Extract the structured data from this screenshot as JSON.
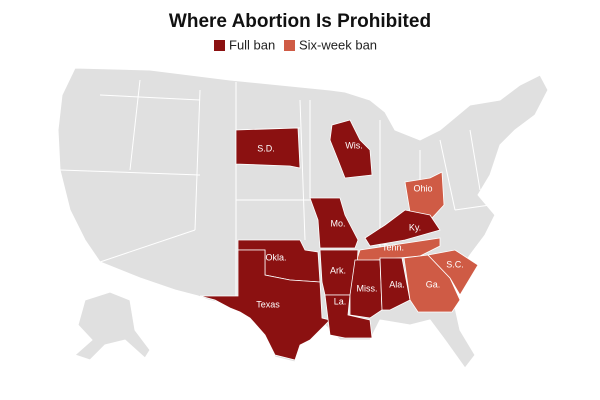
{
  "title": "Where Abortion Is Prohibited",
  "legend": [
    {
      "label": "Full ban",
      "color": "#8b1111"
    },
    {
      "label": "Six-week ban",
      "color": "#cf5b45"
    }
  ],
  "states": [
    {
      "label": "S.D.",
      "category": 0
    },
    {
      "label": "Wis.",
      "category": 0
    },
    {
      "label": "Ohio",
      "category": 1
    },
    {
      "label": "Mo.",
      "category": 0
    },
    {
      "label": "Ky.",
      "category": 0
    },
    {
      "label": "Tenn.",
      "category": 1
    },
    {
      "label": "Okla.",
      "category": 0
    },
    {
      "label": "Texas",
      "category": 0
    },
    {
      "label": "Ark.",
      "category": 0
    },
    {
      "label": "La.",
      "category": 0
    },
    {
      "label": "Miss.",
      "category": 0
    },
    {
      "label": "Ala.",
      "category": 0
    },
    {
      "label": "Ga.",
      "category": 1
    },
    {
      "label": "S.C.",
      "category": 1
    }
  ]
}
